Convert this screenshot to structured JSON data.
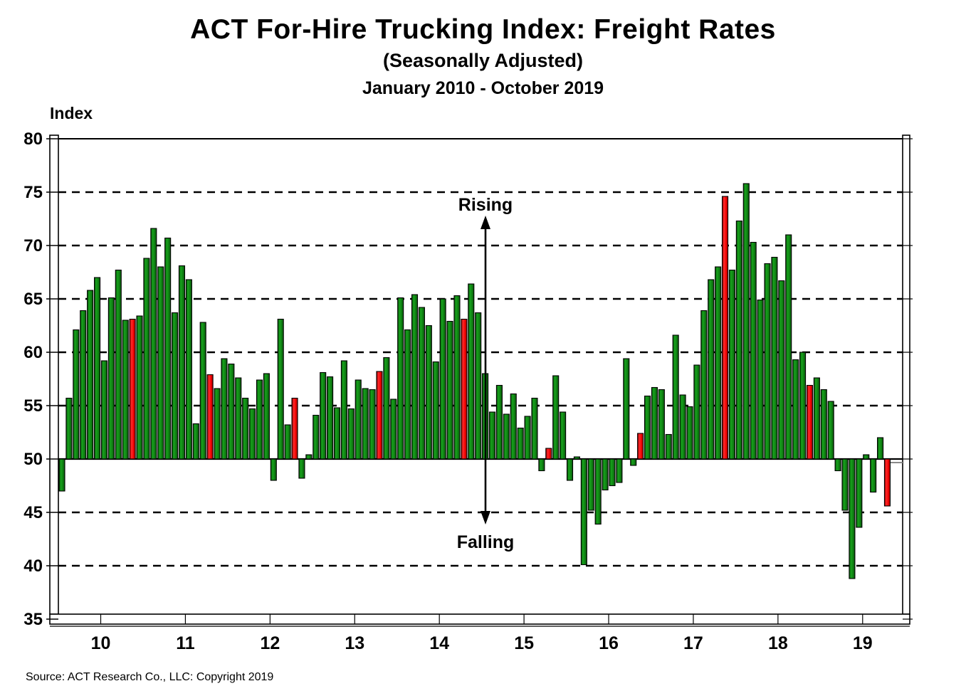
{
  "header": {
    "title": "ACT For-Hire Trucking Index: Freight Rates",
    "subtitle": "(Seasonally Adjusted)",
    "date_range": "January 2010 - October 2019"
  },
  "y_axis_title": "Index",
  "annotations": {
    "rising": "Rising",
    "falling": "Falling"
  },
  "source_line": "Source: ACT Research Co., LLC: Copyright 2019",
  "colors": {
    "bar_green": "#0f7d12",
    "bar_green_light": "#17a21c",
    "bar_green_dark": "#0a5a0c",
    "bar_red": "#ee0000",
    "bar_red_light": "#ff2a2a",
    "bar_red_dark": "#990000",
    "axis": "#000000",
    "background": "#ffffff"
  },
  "chart_data": {
    "type": "bar",
    "title": "ACT For-Hire Trucking Index: Freight Rates",
    "xlabel": "",
    "ylabel": "Index",
    "baseline": 50,
    "ylim": [
      35,
      80
    ],
    "yticks": [
      80,
      75,
      70,
      65,
      60,
      55,
      50,
      45,
      40,
      35
    ],
    "grid": "dashed horizontal gridlines at each tick except solid line at 50",
    "legend": "none",
    "x_year_labels": [
      "10",
      "11",
      "12",
      "13",
      "14",
      "15",
      "16",
      "17",
      "18",
      "19"
    ],
    "note_red_bars": "single highlighted (red) month in each year; all other bars green",
    "years": [
      {
        "label": "10",
        "red_index": 10,
        "values": [
          47.0,
          55.7,
          62.1,
          63.9,
          65.8,
          67.0,
          59.2,
          65.1,
          67.7,
          63.0,
          63.1,
          63.4
        ]
      },
      {
        "label": "11",
        "red_index": 9,
        "values": [
          68.8,
          71.6,
          68.0,
          70.7,
          63.7,
          68.1,
          66.8,
          53.3,
          62.8,
          57.9,
          56.6,
          59.4
        ]
      },
      {
        "label": "12",
        "red_index": 9,
        "values": [
          58.9,
          57.6,
          55.7,
          54.7,
          57.4,
          58.0,
          48.0,
          63.1,
          53.2,
          55.7,
          48.2,
          50.4
        ]
      },
      {
        "label": "13",
        "red_index": 9,
        "values": [
          54.1,
          58.1,
          57.7,
          54.8,
          59.2,
          54.7,
          57.4,
          56.6,
          56.5,
          58.2,
          59.5,
          55.6
        ]
      },
      {
        "label": "14",
        "red_index": 9,
        "values": [
          65.1,
          62.1,
          65.4,
          64.2,
          62.5,
          59.1,
          65.0,
          62.9,
          65.3,
          63.1,
          66.4,
          63.7
        ]
      },
      {
        "label": "15",
        "red_index": 9,
        "values": [
          58.0,
          54.4,
          56.9,
          54.2,
          56.1,
          52.9,
          54.0,
          55.7,
          48.9,
          51.0,
          57.8,
          54.4
        ]
      },
      {
        "label": "16",
        "red_index": 10,
        "values": [
          48.0,
          50.2,
          40.1,
          45.2,
          43.9,
          47.1,
          47.5,
          47.8,
          59.4,
          49.4,
          52.4,
          55.9
        ]
      },
      {
        "label": "17",
        "red_index": 10,
        "values": [
          56.7,
          56.5,
          52.3,
          61.6,
          56.0,
          54.9,
          58.8,
          63.9,
          66.8,
          68.0,
          74.6,
          67.7
        ]
      },
      {
        "label": "18",
        "red_index": 10,
        "values": [
          72.3,
          75.8,
          70.3,
          64.9,
          68.3,
          68.9,
          66.7,
          71.0,
          59.3,
          60.0,
          56.9,
          57.6
        ]
      },
      {
        "label": "19",
        "red_index": 9,
        "values": [
          56.5,
          55.4,
          48.9,
          45.2,
          38.8,
          43.6,
          50.4,
          46.9,
          52.0,
          45.6
        ]
      }
    ]
  }
}
